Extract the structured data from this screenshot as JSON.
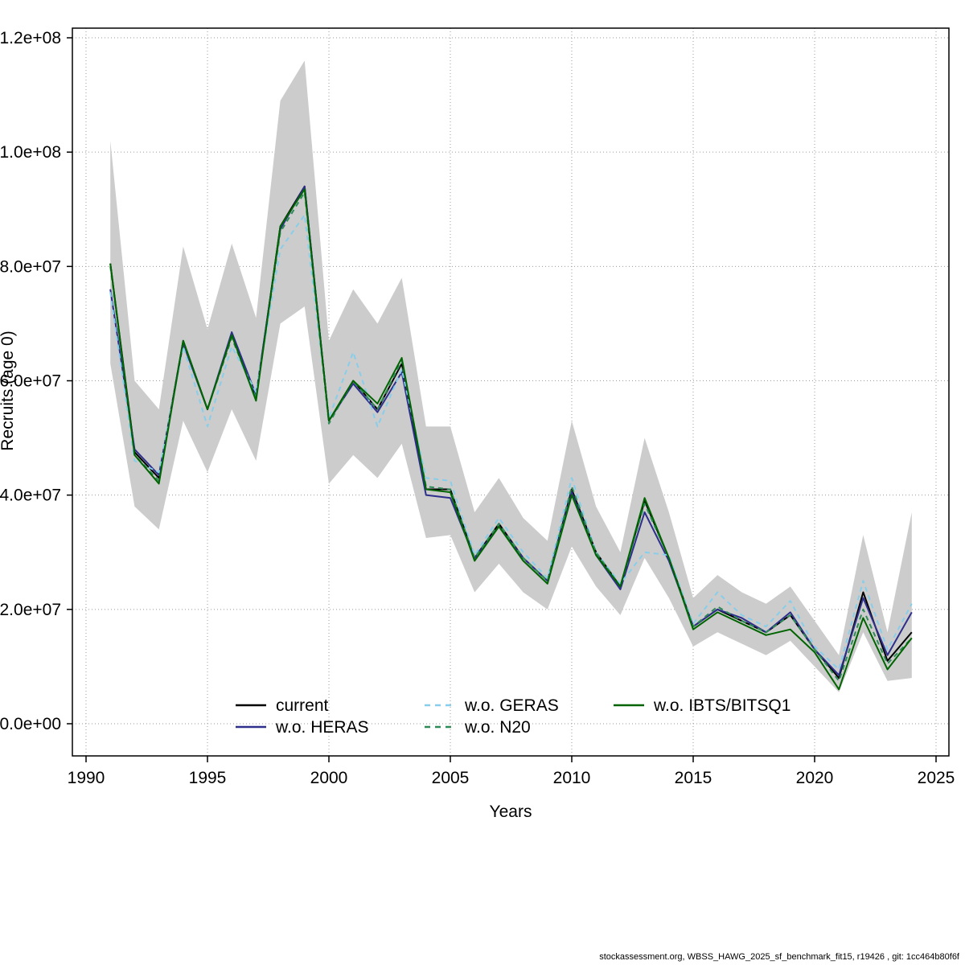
{
  "chart_data": {
    "type": "line",
    "title": "",
    "xlabel": "Years",
    "ylabel": "Recruits (age 0)",
    "footer": "stockassessment.org, WBSS_HAWG_2025_sf_benchmark_fit15, r19426 , git: 1cc464b80f6f",
    "grid": true,
    "legend_position": "bottom-center-inside",
    "xlim": [
      1990,
      2025
    ],
    "ylim": [
      0,
      120000000.0
    ],
    "x_ticks": [
      1990,
      1995,
      2000,
      2005,
      2010,
      2015,
      2020,
      2025
    ],
    "y_ticks": [
      0,
      20000000.0,
      40000000.0,
      60000000.0,
      80000000.0,
      100000000.0,
      120000000.0
    ],
    "y_tick_labels": [
      "0.0e+00",
      "2.0e+07",
      "4.0e+07",
      "6.0e+07",
      "8.0e+07",
      "1.0e+08",
      "1.2e+08"
    ],
    "years": [
      1991,
      1992,
      1993,
      1994,
      1995,
      1996,
      1997,
      1998,
      1999,
      2000,
      2001,
      2002,
      2003,
      2004,
      2005,
      2006,
      2007,
      2008,
      2009,
      2010,
      2011,
      2012,
      2013,
      2014,
      2015,
      2016,
      2017,
      2018,
      2019,
      2020,
      2021,
      2022,
      2023,
      2024
    ],
    "band": {
      "name": "current confidence interval",
      "color": "#cccccc",
      "lower": [
        63000000.0,
        38000000.0,
        34000000.0,
        53000000.0,
        44000000.0,
        55000000.0,
        46000000.0,
        70000000.0,
        73000000.0,
        42000000.0,
        47000000.0,
        43000000.0,
        49000000.0,
        32500000.0,
        33000000.0,
        23000000.0,
        28000000.0,
        23000000.0,
        20000000.0,
        31000000.0,
        24000000.0,
        19000000.0,
        29000000.0,
        22000000.0,
        13500000.0,
        16000000.0,
        14000000.0,
        12000000.0,
        14500000.0,
        10000000.0,
        5500000.0,
        16000000.0,
        7500000.0,
        8000000.0
      ],
      "upper": [
        102000000.0,
        60000000.0,
        55000000.0,
        83500000.0,
        69000000.0,
        84000000.0,
        71000000.0,
        109000000.0,
        116000000.0,
        67000000.0,
        76000000.0,
        70000000.0,
        78000000.0,
        52000000.0,
        52000000.0,
        37000000.0,
        43000000.0,
        36000000.0,
        32000000.0,
        53000000.0,
        38000000.0,
        30000000.0,
        50000000.0,
        37000000.0,
        22000000.0,
        26000000.0,
        23000000.0,
        21000000.0,
        24000000.0,
        18000000.0,
        12000000.0,
        33000000.0,
        16000000.0,
        37000000.0
      ]
    },
    "series": [
      {
        "name": "current",
        "color": "#000000",
        "dashed": false,
        "values": [
          80500000.0,
          47500000.0,
          43000000.0,
          67000000.0,
          55000000.0,
          68000000.0,
          57000000.0,
          87000000.0,
          94000000.0,
          53000000.0,
          60000000.0,
          55000000.0,
          63000000.0,
          41000000.0,
          41000000.0,
          29000000.0,
          35000000.0,
          29000000.0,
          25000000.0,
          41000000.0,
          30000000.0,
          24000000.0,
          39000000.0,
          29000000.0,
          17000000.0,
          20000000.0,
          18000000.0,
          16000000.0,
          19000000.0,
          13000000.0,
          8000000.0,
          23000000.0,
          11000000.0,
          16000000.0
        ]
      },
      {
        "name": "w.o. HERAS",
        "color": "#2e2e8c",
        "dashed": false,
        "values": [
          76000000.0,
          48000000.0,
          43500000.0,
          66500000.0,
          55000000.0,
          68500000.0,
          57500000.0,
          86500000.0,
          94000000.0,
          53000000.0,
          59500000.0,
          54500000.0,
          61500000.0,
          40000000.0,
          39500000.0,
          29000000.0,
          34500000.0,
          29000000.0,
          25000000.0,
          40500000.0,
          29500000.0,
          23500000.0,
          37000000.0,
          28500000.0,
          17000000.0,
          20000000.0,
          18500000.0,
          16000000.0,
          19500000.0,
          13000000.0,
          8500000.0,
          22000000.0,
          12000000.0,
          19500000.0
        ]
      },
      {
        "name": "w.o. GERAS",
        "color": "#87ceeb",
        "dashed": true,
        "values": [
          75500000.0,
          46000000.0,
          44000000.0,
          66000000.0,
          52000000.0,
          66000000.0,
          58000000.0,
          83000000.0,
          89000000.0,
          53500000.0,
          65000000.0,
          52000000.0,
          62000000.0,
          43000000.0,
          42500000.0,
          29500000.0,
          36000000.0,
          30000000.0,
          25500000.0,
          43000000.0,
          30000000.0,
          24500000.0,
          30000000.0,
          29500000.0,
          17500000.0,
          23000000.0,
          19000000.0,
          17000000.0,
          21500000.0,
          13500000.0,
          9500000.0,
          25000000.0,
          13000000.0,
          21000000.0
        ]
      },
      {
        "name": "w.o. N20",
        "color": "#2e8b57",
        "dashed": true,
        "values": [
          80000000.0,
          47000000.0,
          42500000.0,
          67000000.0,
          55000000.0,
          67500000.0,
          57000000.0,
          86000000.0,
          93000000.0,
          52500000.0,
          60000000.0,
          55000000.0,
          63500000.0,
          41500000.0,
          41000000.0,
          29000000.0,
          35000000.0,
          29000000.0,
          25000000.0,
          41500000.0,
          30000000.0,
          24000000.0,
          38500000.0,
          29000000.0,
          17000000.0,
          20500000.0,
          18000000.0,
          16000000.0,
          19000000.0,
          13000000.0,
          7500000.0,
          20000000.0,
          10500000.0,
          15000000.0
        ]
      },
      {
        "name": "w.o. IBTS/BITSQ1",
        "color": "#006400",
        "dashed": false,
        "values": [
          80500000.0,
          47000000.0,
          42000000.0,
          67000000.0,
          55000000.0,
          68000000.0,
          56500000.0,
          87000000.0,
          93500000.0,
          53000000.0,
          60000000.0,
          56000000.0,
          64000000.0,
          41000000.0,
          40500000.0,
          28500000.0,
          34500000.0,
          28500000.0,
          24500000.0,
          40000000.0,
          29500000.0,
          24000000.0,
          39500000.0,
          29000000.0,
          16500000.0,
          19500000.0,
          17500000.0,
          15500000.0,
          16500000.0,
          12500000.0,
          6000000.0,
          18500000.0,
          9500000.0,
          15000000.0
        ]
      }
    ]
  }
}
